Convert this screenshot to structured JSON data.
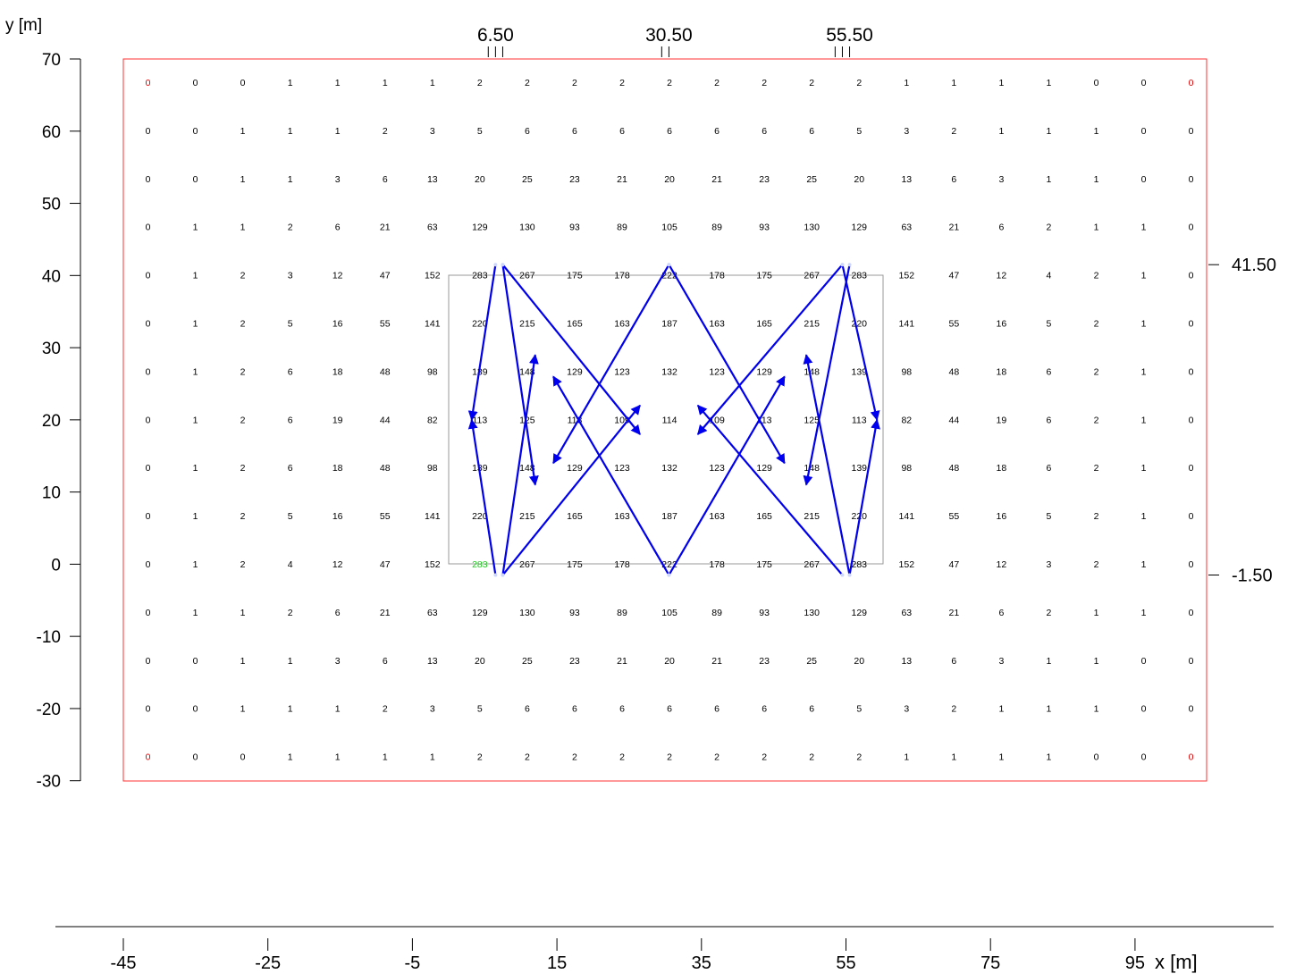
{
  "axes": {
    "y_label": "y [m]",
    "x_label": "x [m]",
    "y_ticks": [
      "70",
      "60",
      "50",
      "40",
      "30",
      "20",
      "10",
      "0",
      "-10",
      "-20",
      "-30"
    ],
    "x_ticks": [
      "-45",
      "-25",
      "-5",
      "15",
      "35",
      "55",
      "75",
      "95"
    ],
    "top_marks": [
      "6.50",
      "30.50",
      "55.50"
    ],
    "right_marks": [
      "41.50",
      "-1.50"
    ]
  },
  "colors": {
    "boundary": "#ff3333",
    "arrows": "#0000ee",
    "zone": "#999999",
    "text": "#000000",
    "corner_value": "#dd0000",
    "highlight_value": "#22cc22"
  },
  "grid": {
    "rows": [
      [
        "0",
        "0",
        "0",
        "1",
        "1",
        "1",
        "1",
        "2",
        "2",
        "2",
        "2",
        "2",
        "2",
        "2",
        "2",
        "2",
        "1",
        "1",
        "1",
        "1",
        "0",
        "0",
        "0"
      ],
      [
        "0",
        "0",
        "1",
        "1",
        "1",
        "2",
        "3",
        "5",
        "6",
        "6",
        "6",
        "6",
        "6",
        "6",
        "6",
        "5",
        "3",
        "2",
        "1",
        "1",
        "1",
        "0",
        "0"
      ],
      [
        "0",
        "0",
        "1",
        "1",
        "3",
        "6",
        "13",
        "20",
        "25",
        "23",
        "21",
        "20",
        "21",
        "23",
        "25",
        "20",
        "13",
        "6",
        "3",
        "1",
        "1",
        "0",
        "0"
      ],
      [
        "0",
        "1",
        "1",
        "2",
        "6",
        "21",
        "63",
        "129",
        "130",
        "93",
        "89",
        "105",
        "89",
        "93",
        "130",
        "129",
        "63",
        "21",
        "6",
        "2",
        "1",
        "1",
        "0"
      ],
      [
        "0",
        "1",
        "2",
        "3",
        "12",
        "47",
        "152",
        "283",
        "267",
        "175",
        "178",
        "222",
        "178",
        "175",
        "267",
        "283",
        "152",
        "47",
        "12",
        "4",
        "2",
        "1",
        "0"
      ],
      [
        "0",
        "1",
        "2",
        "5",
        "16",
        "55",
        "141",
        "220",
        "215",
        "165",
        "163",
        "187",
        "163",
        "165",
        "215",
        "220",
        "141",
        "55",
        "16",
        "5",
        "2",
        "1",
        "0"
      ],
      [
        "0",
        "1",
        "2",
        "6",
        "18",
        "48",
        "98",
        "139",
        "148",
        "129",
        "123",
        "132",
        "123",
        "129",
        "148",
        "139",
        "98",
        "48",
        "18",
        "6",
        "2",
        "1",
        "0"
      ],
      [
        "0",
        "1",
        "2",
        "6",
        "19",
        "44",
        "82",
        "113",
        "125",
        "113",
        "109",
        "114",
        "109",
        "113",
        "125",
        "113",
        "82",
        "44",
        "19",
        "6",
        "2",
        "1",
        "0"
      ],
      [
        "0",
        "1",
        "2",
        "6",
        "18",
        "48",
        "98",
        "139",
        "148",
        "129",
        "123",
        "132",
        "123",
        "129",
        "148",
        "139",
        "98",
        "48",
        "18",
        "6",
        "2",
        "1",
        "0"
      ],
      [
        "0",
        "1",
        "2",
        "5",
        "16",
        "55",
        "141",
        "220",
        "215",
        "165",
        "163",
        "187",
        "163",
        "165",
        "215",
        "220",
        "141",
        "55",
        "16",
        "5",
        "2",
        "1",
        "0"
      ],
      [
        "0",
        "1",
        "2",
        "4",
        "12",
        "47",
        "152",
        "283",
        "267",
        "175",
        "178",
        "222",
        "178",
        "175",
        "267",
        "283",
        "152",
        "47",
        "12",
        "3",
        "2",
        "1",
        "0"
      ],
      [
        "0",
        "1",
        "1",
        "2",
        "6",
        "21",
        "63",
        "129",
        "130",
        "93",
        "89",
        "105",
        "89",
        "93",
        "130",
        "129",
        "63",
        "21",
        "6",
        "2",
        "1",
        "1",
        "0"
      ],
      [
        "0",
        "0",
        "1",
        "1",
        "3",
        "6",
        "13",
        "20",
        "25",
        "23",
        "21",
        "20",
        "21",
        "23",
        "25",
        "20",
        "13",
        "6",
        "3",
        "1",
        "1",
        "0",
        "0"
      ],
      [
        "0",
        "0",
        "1",
        "1",
        "1",
        "2",
        "3",
        "5",
        "6",
        "6",
        "6",
        "6",
        "6",
        "6",
        "6",
        "5",
        "3",
        "2",
        "1",
        "1",
        "1",
        "0",
        "0"
      ],
      [
        "0",
        "0",
        "0",
        "1",
        "1",
        "1",
        "1",
        "2",
        "2",
        "2",
        "2",
        "2",
        "2",
        "2",
        "2",
        "2",
        "1",
        "1",
        "1",
        "1",
        "0",
        "0",
        "0"
      ]
    ],
    "corner_cells": [
      [
        0,
        0
      ],
      [
        0,
        22
      ],
      [
        14,
        0
      ],
      [
        14,
        22
      ]
    ],
    "highlight_cell": [
      10,
      7
    ]
  },
  "arrows": [
    {
      "from": [
        6.5,
        41.5
      ],
      "to": [
        3.2,
        20
      ]
    },
    {
      "from": [
        6.5,
        -1.5
      ],
      "to": [
        3.2,
        20
      ]
    },
    {
      "from": [
        7.5,
        41.5
      ],
      "to": [
        12.0,
        11
      ]
    },
    {
      "from": [
        7.5,
        -1.5
      ],
      "to": [
        12.0,
        29
      ]
    },
    {
      "from": [
        7.5,
        41.5
      ],
      "to": [
        26.5,
        18
      ]
    },
    {
      "from": [
        7.5,
        -1.5
      ],
      "to": [
        26.5,
        22
      ]
    },
    {
      "from": [
        30.5,
        41.5
      ],
      "to": [
        14.5,
        14
      ]
    },
    {
      "from": [
        30.5,
        -1.5
      ],
      "to": [
        14.5,
        26
      ]
    },
    {
      "from": [
        30.5,
        41.5
      ],
      "to": [
        46.5,
        14
      ]
    },
    {
      "from": [
        30.5,
        -1.5
      ],
      "to": [
        46.5,
        26
      ]
    },
    {
      "from": [
        54.5,
        41.5
      ],
      "to": [
        34.5,
        18
      ]
    },
    {
      "from": [
        54.5,
        -1.5
      ],
      "to": [
        34.5,
        22
      ]
    },
    {
      "from": [
        55.5,
        41.5
      ],
      "to": [
        49.5,
        11
      ]
    },
    {
      "from": [
        55.5,
        -1.5
      ],
      "to": [
        49.5,
        29
      ]
    },
    {
      "from": [
        54.5,
        41.5
      ],
      "to": [
        59.3,
        20
      ]
    },
    {
      "from": [
        55.5,
        -1.5
      ],
      "to": [
        59.3,
        20
      ]
    }
  ]
}
